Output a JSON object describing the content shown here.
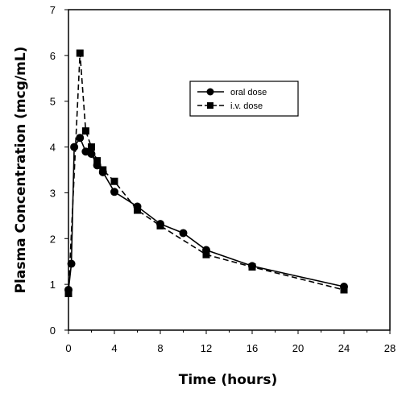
{
  "chart_data": {
    "type": "line",
    "xlabel": "Time (hours)",
    "ylabel": "Plasma Concentration (mcg/mL)",
    "xlim": [
      0,
      28
    ],
    "ylim": [
      0,
      7
    ],
    "x_ticks": [
      "0",
      "4",
      "8",
      "12",
      "16",
      "20",
      "24",
      "28"
    ],
    "y_ticks": [
      "0",
      "1",
      "2",
      "3",
      "4",
      "5",
      "6",
      "7"
    ],
    "grid": false,
    "legend_position": "top-right",
    "series": [
      {
        "name": "oral dose",
        "marker": "circle",
        "line": "solid",
        "x": [
          0,
          0.25,
          0.5,
          1,
          1.5,
          2,
          2.5,
          3,
          4,
          6,
          8,
          10,
          12,
          16,
          24
        ],
        "y": [
          0.88,
          1.45,
          4.0,
          4.2,
          3.9,
          3.85,
          3.6,
          3.45,
          3.02,
          2.7,
          2.32,
          2.12,
          1.75,
          1.4,
          0.95
        ]
      },
      {
        "name": "i.v. dose",
        "marker": "square",
        "line": "dashed",
        "x": [
          0,
          1,
          1.5,
          2,
          2.5,
          3,
          4,
          6,
          8,
          12,
          16,
          24
        ],
        "y": [
          0.8,
          6.05,
          4.35,
          4.0,
          3.7,
          3.5,
          3.25,
          2.62,
          2.28,
          1.65,
          1.38,
          0.88
        ]
      }
    ]
  }
}
